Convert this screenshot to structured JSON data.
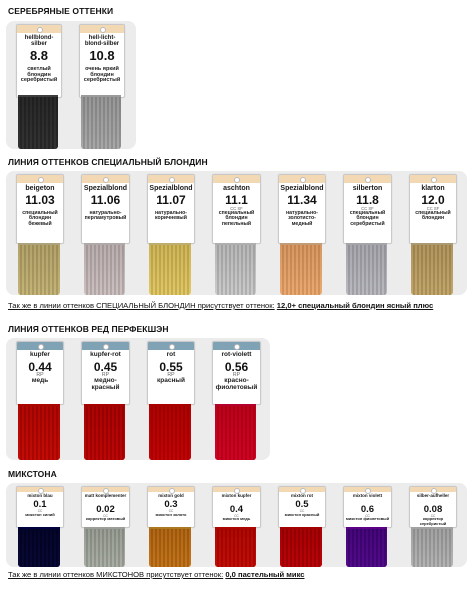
{
  "sections": {
    "silver": {
      "title": "СЕРЕБРЯНЫЕ ОТТЕНКИ",
      "swatches": [
        {
          "name": "hellblond-silber",
          "code": "8.8",
          "cc": "",
          "desc": "светлый блондин серебристый",
          "hair": "#6b6b6b",
          "tag_top": "#f2d9b3"
        },
        {
          "name": "hell-licht-blond-silber",
          "code": "10.8",
          "cc": "",
          "desc": "очень яркий блондин серебристый",
          "hair": "#c8c8c8",
          "tag_top": "#f2d9b3"
        }
      ]
    },
    "blond": {
      "title": "ЛИНИЯ ОТТЕНКОВ СПЕЦИАЛЬНЫЙ БЛОНДИН",
      "swatches": [
        {
          "name": "beigeton",
          "code": "11.03",
          "cc": "",
          "desc": "специальный блондин бежевый",
          "hair": "#d9cfa8",
          "tag_top": "#f2d9b3"
        },
        {
          "name": "Spezialblond",
          "code": "11.06",
          "cc": "",
          "desc": "натурально-перламутровый",
          "hair": "#ddd6d6",
          "tag_top": "#f2d9b3"
        },
        {
          "name": "Spezialblond",
          "code": "11.07",
          "cc": "",
          "desc": "натурально-коричневый",
          "hair": "#eadb9a",
          "tag_top": "#f2d9b3"
        },
        {
          "name": "aschton",
          "code": "11.1",
          "cc": "CC SF",
          "desc": "специальный блондин пепельный",
          "hair": "#dcdcdc",
          "tag_top": "#f2d9b3"
        },
        {
          "name": "Spezialblond",
          "code": "11.34",
          "cc": "",
          "desc": "натурально-золотисто-медный",
          "hair": "#f0c9a2",
          "tag_top": "#f2d9b3"
        },
        {
          "name": "silberton",
          "code": "11.8",
          "cc": "CC SF",
          "desc": "специальный блондин серебристый",
          "hair": "#d2d2d6",
          "tag_top": "#f2d9b3"
        },
        {
          "name": "klarton",
          "code": "12.0",
          "cc": "CC SF",
          "desc": "специальный блондин",
          "hair": "#d8c79e",
          "tag_top": "#f2d9b3"
        }
      ],
      "note_prefix": "Так же в линии оттенков СПЕЦИАЛЬНЫЙ БЛОНДИН присутствует оттенок:",
      "note_value": "12,0+ специальный блондин ясный плюс"
    },
    "red": {
      "title": "ЛИНИЯ ОТТЕНКОВ РЕД ПЕРФЕКШЭН",
      "swatches": [
        {
          "name": "kupfer",
          "code": "0.44",
          "cc": "RP",
          "desc": "медь",
          "hair": "#d83222",
          "tag_top": "#7fa2b4"
        },
        {
          "name": "kupfer-rot",
          "code": "0.45",
          "cc": "RP",
          "desc": "медно-красный",
          "hair": "#d42421",
          "tag_top": "#7fa2b4"
        },
        {
          "name": "rot",
          "code": "0.55",
          "cc": "RP",
          "desc": "красный",
          "hair": "#d8161a",
          "tag_top": "#7fa2b4"
        },
        {
          "name": "rot-violett",
          "code": "0.56",
          "cc": "RP",
          "desc": "красно-фиолетовый",
          "hair": "#e0145a",
          "tag_top": "#7fa2b4"
        }
      ]
    },
    "mix": {
      "title": "МИКСТОНА",
      "swatches": [
        {
          "name": "mixton blau",
          "code": "0.1",
          "cc": "CC",
          "desc": "микстон синий",
          "hair": "#2a2a6e",
          "tag_top": "#f2d9b3"
        },
        {
          "name": "matt komplementer",
          "code": "0.02",
          "cc": "CC",
          "desc": "корректор матовый",
          "hair": "#c9ccc6",
          "tag_top": "#f2d9b3"
        },
        {
          "name": "mixton gold",
          "code": "0.3",
          "cc": "CC",
          "desc": "микстон золото",
          "hair": "#d8a64c",
          "tag_top": "#f2d9b3"
        },
        {
          "name": "mixton kupfer",
          "code": "0.4",
          "cc": "CC",
          "desc": "микстон медь",
          "hair": "#d8341f",
          "tag_top": "#f2d9b3"
        },
        {
          "name": "mixton rot",
          "code": "0.5",
          "cc": "CC",
          "desc": "микстон красный",
          "hair": "#d21c2a",
          "tag_top": "#f2d9b3"
        },
        {
          "name": "mixton violett",
          "code": "0.6",
          "cc": "CC",
          "desc": "микстон фиолетовый",
          "hair": "#8a2fb5",
          "tag_top": "#f2d9b3"
        },
        {
          "name": "silber-aufheller",
          "code": "0.08",
          "cc": "CC",
          "desc": "корректор серебристый",
          "hair": "#cfcfcf",
          "tag_top": "#f2d9b3"
        }
      ],
      "note_prefix": "Так же в линии оттенков МИКСТОНОВ присутствует оттенок:",
      "note_value": "0,0 пастельный микс"
    }
  }
}
